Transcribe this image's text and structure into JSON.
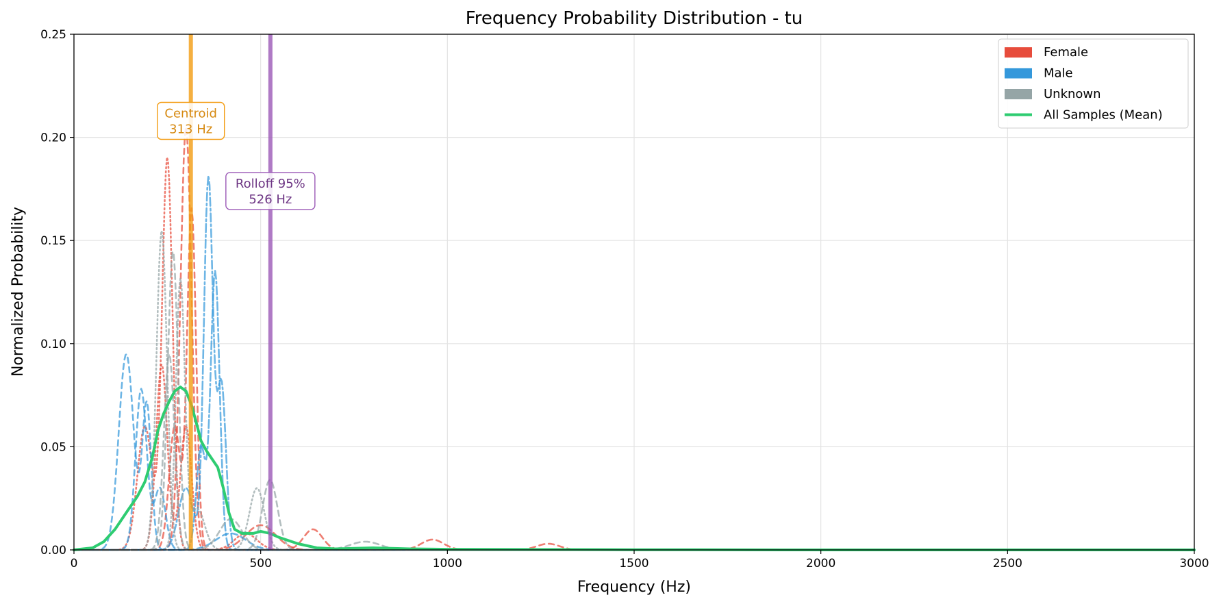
{
  "chart_data": {
    "type": "line",
    "title": "Frequency Probability Distribution - tu",
    "xlabel": "Frequency (Hz)",
    "ylabel": "Normalized Probability",
    "xlim": [
      0,
      3000
    ],
    "ylim": [
      0,
      0.25
    ],
    "x_ticks": [
      0,
      500,
      1000,
      1500,
      2000,
      2500,
      3000
    ],
    "x_tick_labels": [
      "0",
      "500",
      "1000",
      "1500",
      "2000",
      "2500",
      "3000"
    ],
    "y_ticks": [
      0,
      0.05,
      0.1,
      0.15,
      0.2,
      0.25
    ],
    "y_tick_labels": [
      "0.00",
      "0.05",
      "0.10",
      "0.15",
      "0.20",
      "0.25"
    ],
    "grid": true,
    "legend_position": "top-right",
    "legend": [
      {
        "label": "Female",
        "kind": "patch",
        "color": "#e74c3c"
      },
      {
        "label": "Male",
        "kind": "patch",
        "color": "#3498db"
      },
      {
        "label": "Unknown",
        "kind": "patch",
        "color": "#95a5a6"
      },
      {
        "label": "All Samples (Mean)",
        "kind": "line",
        "color": "#2ecc71"
      }
    ],
    "markers": [
      {
        "x": 313,
        "label_line1": "Centroid",
        "label_line2": "313 Hz",
        "color": "#f39c12",
        "text_color": "#d68910",
        "label_y": 0.208
      },
      {
        "x": 526,
        "label_line1": "Rolloff 95%",
        "label_line2": "526 Hz",
        "color": "#9b59b6",
        "text_color": "#6c3483",
        "label_y": 0.174
      }
    ],
    "series": [
      {
        "group": "female",
        "color": "#e74c3c",
        "dash": "8,6",
        "peaks": [
          [
            300,
            0.205,
            15
          ],
          [
            640,
            0.01,
            25
          ],
          [
            960,
            0.005,
            30
          ],
          [
            1270,
            0.003,
            30
          ]
        ]
      },
      {
        "group": "female",
        "color": "#e74c3c",
        "dash": "8,6",
        "peaks": [
          [
            315,
            0.165,
            12
          ],
          [
            270,
            0.06,
            15
          ],
          [
            500,
            0.012,
            40
          ]
        ]
      },
      {
        "group": "female",
        "color": "#e74c3c",
        "dash": "2,4",
        "peaks": [
          [
            250,
            0.19,
            14
          ],
          [
            190,
            0.06,
            20
          ],
          [
            460,
            0.008,
            30
          ]
        ]
      },
      {
        "group": "female",
        "color": "#e74c3c",
        "dash": "2,4",
        "peaks": [
          [
            235,
            0.09,
            15
          ],
          [
            300,
            0.06,
            15
          ]
        ]
      },
      {
        "group": "male",
        "color": "#3498db",
        "dash": "12,4,3,4",
        "peaks": [
          [
            360,
            0.18,
            12
          ],
          [
            395,
            0.08,
            12
          ],
          [
            300,
            0.03,
            20
          ]
        ]
      },
      {
        "group": "male",
        "color": "#3498db",
        "dash": "12,4,3,4",
        "peaks": [
          [
            378,
            0.135,
            12
          ],
          [
            340,
            0.05,
            12
          ]
        ]
      },
      {
        "group": "male",
        "color": "#3498db",
        "dash": "8,6",
        "peaks": [
          [
            140,
            0.095,
            20
          ],
          [
            195,
            0.07,
            12
          ],
          [
            420,
            0.008,
            40
          ]
        ]
      },
      {
        "group": "male",
        "color": "#3498db",
        "dash": "8,6",
        "peaks": [
          [
            180,
            0.078,
            15
          ],
          [
            230,
            0.03,
            15
          ]
        ]
      },
      {
        "group": "unknown",
        "color": "#95a5a6",
        "dash": "8,6",
        "peaks": [
          [
            265,
            0.145,
            14
          ],
          [
            525,
            0.034,
            20
          ],
          [
            780,
            0.004,
            40
          ]
        ]
      },
      {
        "group": "unknown",
        "color": "#95a5a6",
        "dash": "2,4",
        "peaks": [
          [
            235,
            0.155,
            14
          ],
          [
            490,
            0.03,
            20
          ]
        ]
      },
      {
        "group": "unknown",
        "color": "#95a5a6",
        "dash": "2,4",
        "peaks": [
          [
            285,
            0.13,
            12
          ],
          [
            330,
            0.02,
            20
          ]
        ]
      },
      {
        "group": "unknown",
        "color": "#95a5a6",
        "dash": "8,6",
        "peaks": [
          [
            255,
            0.095,
            14
          ],
          [
            420,
            0.015,
            30
          ]
        ]
      },
      {
        "group": "mean",
        "color": "#2ecc71",
        "dash": "",
        "points": [
          [
            0,
            0
          ],
          [
            50,
            0.001
          ],
          [
            80,
            0.004
          ],
          [
            110,
            0.01
          ],
          [
            140,
            0.018
          ],
          [
            170,
            0.026
          ],
          [
            190,
            0.033
          ],
          [
            210,
            0.045
          ],
          [
            225,
            0.058
          ],
          [
            240,
            0.066
          ],
          [
            255,
            0.072
          ],
          [
            270,
            0.077
          ],
          [
            285,
            0.079
          ],
          [
            300,
            0.077
          ],
          [
            315,
            0.07
          ],
          [
            330,
            0.06
          ],
          [
            340,
            0.053
          ],
          [
            355,
            0.048
          ],
          [
            370,
            0.044
          ],
          [
            385,
            0.04
          ],
          [
            400,
            0.03
          ],
          [
            415,
            0.018
          ],
          [
            430,
            0.01
          ],
          [
            450,
            0.008
          ],
          [
            480,
            0.008
          ],
          [
            500,
            0.009
          ],
          [
            525,
            0.008
          ],
          [
            550,
            0.006
          ],
          [
            600,
            0.003
          ],
          [
            650,
            0.001
          ],
          [
            700,
            0.0005
          ],
          [
            800,
            0.001
          ],
          [
            900,
            0.0005
          ],
          [
            1000,
            0.0003
          ],
          [
            1500,
            0.0001
          ],
          [
            2000,
            0.0
          ],
          [
            3000,
            0.0
          ]
        ]
      }
    ]
  }
}
